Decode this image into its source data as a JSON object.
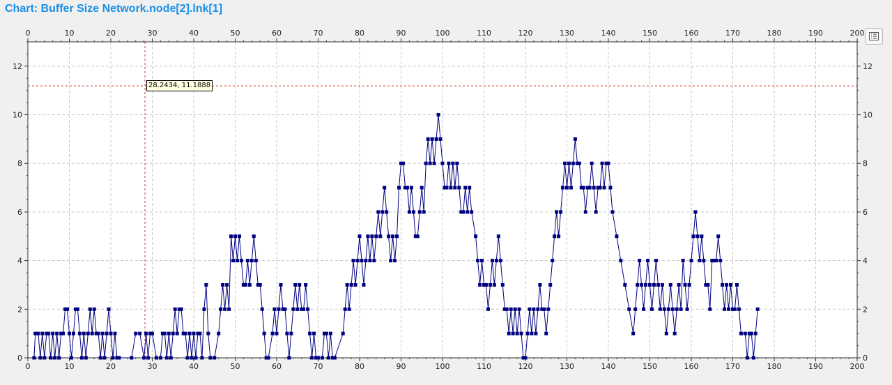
{
  "title": "Chart: Buffer Size Network.node[2].lnk[1]",
  "cursor": {
    "x": 28.2434,
    "y": 11.1888,
    "label": "28.2434, 11.1888"
  },
  "legend_button": {
    "icon": "list-icon"
  },
  "colors": {
    "title": "#1a8fe6",
    "series": "#000080",
    "cursor": "#d03030",
    "grid": "#c8c8c8",
    "plot_bg": "#ffffff"
  },
  "chart_data": {
    "type": "line",
    "title": "Buffer Size Network.node[2].lnk[1]",
    "xlabel": "",
    "ylabel": "",
    "xlim": [
      0,
      200
    ],
    "ylim": [
      0,
      13
    ],
    "xticks": [
      0,
      10,
      20,
      30,
      40,
      50,
      60,
      70,
      80,
      90,
      100,
      110,
      120,
      130,
      140,
      150,
      160,
      170,
      180,
      190,
      200
    ],
    "yticks": [
      0,
      2,
      4,
      6,
      8,
      10,
      12
    ],
    "grid": true,
    "markers": "square",
    "series": [
      {
        "values": [
          [
            1.5,
            0
          ],
          [
            1.8,
            1
          ],
          [
            2.5,
            1
          ],
          [
            3,
            0
          ],
          [
            3.5,
            1
          ],
          [
            4,
            0
          ],
          [
            4.5,
            1
          ],
          [
            5,
            1
          ],
          [
            5.5,
            0
          ],
          [
            6,
            1
          ],
          [
            6.5,
            0
          ],
          [
            7,
            1
          ],
          [
            7.5,
            0
          ],
          [
            8,
            1
          ],
          [
            8.5,
            1
          ],
          [
            9,
            2
          ],
          [
            9.5,
            2
          ],
          [
            10,
            1
          ],
          [
            10.5,
            0
          ],
          [
            11,
            1
          ],
          [
            11.5,
            2
          ],
          [
            12,
            2
          ],
          [
            12.5,
            1
          ],
          [
            13,
            0
          ],
          [
            13.5,
            1
          ],
          [
            14,
            0
          ],
          [
            14.5,
            1
          ],
          [
            15,
            2
          ],
          [
            15.5,
            1
          ],
          [
            16,
            2
          ],
          [
            16.5,
            1
          ],
          [
            17,
            1
          ],
          [
            17.5,
            0
          ],
          [
            18,
            1
          ],
          [
            18.5,
            0
          ],
          [
            19,
            1
          ],
          [
            19.5,
            2
          ],
          [
            20,
            1
          ],
          [
            20.5,
            0
          ],
          [
            21,
            1
          ],
          [
            21.5,
            0
          ],
          [
            22,
            0
          ],
          [
            25,
            0
          ],
          [
            26,
            1
          ],
          [
            27,
            1
          ],
          [
            28,
            0
          ],
          [
            28.5,
            1
          ],
          [
            29,
            0
          ],
          [
            29.5,
            1
          ],
          [
            30,
            1
          ],
          [
            31,
            0
          ],
          [
            32,
            0
          ],
          [
            32.5,
            1
          ],
          [
            33,
            1
          ],
          [
            33.5,
            0
          ],
          [
            34,
            1
          ],
          [
            34.5,
            0
          ],
          [
            35,
            1
          ],
          [
            35.5,
            2
          ],
          [
            36,
            1
          ],
          [
            36.5,
            2
          ],
          [
            37,
            2
          ],
          [
            37.5,
            1
          ],
          [
            38,
            1
          ],
          [
            38.5,
            0
          ],
          [
            39,
            1
          ],
          [
            39.5,
            0
          ],
          [
            40,
            1
          ],
          [
            40.5,
            0
          ],
          [
            41,
            1
          ],
          [
            41.5,
            1
          ],
          [
            42,
            0
          ],
          [
            42.5,
            2
          ],
          [
            43,
            3
          ],
          [
            43.5,
            1
          ],
          [
            44,
            0
          ],
          [
            45,
            0
          ],
          [
            46,
            1
          ],
          [
            46.5,
            2
          ],
          [
            47,
            3
          ],
          [
            47.5,
            2
          ],
          [
            48,
            3
          ],
          [
            48.5,
            2
          ],
          [
            49,
            5
          ],
          [
            49.5,
            4
          ],
          [
            50,
            5
          ],
          [
            50.5,
            4
          ],
          [
            51,
            5
          ],
          [
            51.5,
            4
          ],
          [
            52,
            3
          ],
          [
            52.5,
            3
          ],
          [
            53,
            4
          ],
          [
            53.5,
            3
          ],
          [
            54,
            4
          ],
          [
            54.5,
            5
          ],
          [
            55,
            4
          ],
          [
            55.5,
            3
          ],
          [
            56,
            3
          ],
          [
            56.5,
            2
          ],
          [
            57,
            1
          ],
          [
            57.5,
            0
          ],
          [
            58,
            0
          ],
          [
            59,
            1
          ],
          [
            59.5,
            2
          ],
          [
            60,
            1
          ],
          [
            60.5,
            2
          ],
          [
            61,
            3
          ],
          [
            61.5,
            2
          ],
          [
            62,
            2
          ],
          [
            62.5,
            1
          ],
          [
            63,
            0
          ],
          [
            63.5,
            1
          ],
          [
            64,
            2
          ],
          [
            64.5,
            3
          ],
          [
            65,
            2
          ],
          [
            65.5,
            3
          ],
          [
            66,
            2
          ],
          [
            66.5,
            2
          ],
          [
            67,
            3
          ],
          [
            67.5,
            2
          ],
          [
            68,
            1
          ],
          [
            68.5,
            0
          ],
          [
            69,
            1
          ],
          [
            69.5,
            0
          ],
          [
            70,
            0
          ],
          [
            71,
            0
          ],
          [
            71.5,
            1
          ],
          [
            72,
            1
          ],
          [
            72.5,
            0
          ],
          [
            73,
            1
          ],
          [
            73.5,
            0
          ],
          [
            74,
            0
          ],
          [
            76,
            1
          ],
          [
            76.5,
            2
          ],
          [
            77,
            3
          ],
          [
            77.5,
            2
          ],
          [
            78,
            3
          ],
          [
            78.5,
            4
          ],
          [
            79,
            3
          ],
          [
            79.5,
            4
          ],
          [
            80,
            5
          ],
          [
            80.5,
            4
          ],
          [
            81,
            3
          ],
          [
            81.5,
            4
          ],
          [
            82,
            5
          ],
          [
            82.5,
            4
          ],
          [
            83,
            5
          ],
          [
            83.5,
            4
          ],
          [
            84,
            5
          ],
          [
            84.5,
            6
          ],
          [
            85,
            5
          ],
          [
            85.5,
            6
          ],
          [
            86,
            7
          ],
          [
            86.5,
            6
          ],
          [
            87,
            5
          ],
          [
            87.5,
            4
          ],
          [
            88,
            5
          ],
          [
            88.5,
            4
          ],
          [
            89,
            5
          ],
          [
            89.5,
            7
          ],
          [
            90,
            8
          ],
          [
            90.5,
            8
          ],
          [
            91,
            7
          ],
          [
            91.5,
            7
          ],
          [
            92,
            6
          ],
          [
            92.5,
            7
          ],
          [
            93,
            6
          ],
          [
            93.5,
            5
          ],
          [
            94,
            5
          ],
          [
            94.5,
            6
          ],
          [
            95,
            7
          ],
          [
            95.5,
            6
          ],
          [
            96,
            8
          ],
          [
            96.5,
            9
          ],
          [
            97,
            8
          ],
          [
            97.5,
            9
          ],
          [
            98,
            8
          ],
          [
            98.5,
            9
          ],
          [
            99,
            10
          ],
          [
            99.5,
            9
          ],
          [
            100,
            8
          ],
          [
            100.5,
            7
          ],
          [
            101,
            7
          ],
          [
            101.5,
            8
          ],
          [
            102,
            7
          ],
          [
            102.5,
            8
          ],
          [
            103,
            7
          ],
          [
            103.5,
            8
          ],
          [
            104,
            7
          ],
          [
            104.5,
            6
          ],
          [
            105,
            6
          ],
          [
            105.5,
            7
          ],
          [
            106,
            6
          ],
          [
            106.5,
            7
          ],
          [
            107,
            6
          ],
          [
            108,
            5
          ],
          [
            108.5,
            4
          ],
          [
            109,
            3
          ],
          [
            109.5,
            4
          ],
          [
            110,
            3
          ],
          [
            110.5,
            3
          ],
          [
            111,
            2
          ],
          [
            111.5,
            3
          ],
          [
            112,
            4
          ],
          [
            112.5,
            3
          ],
          [
            113,
            4
          ],
          [
            113.5,
            5
          ],
          [
            114,
            4
          ],
          [
            114.5,
            3
          ],
          [
            115,
            2
          ],
          [
            115.5,
            2
          ],
          [
            116,
            1
          ],
          [
            116.5,
            2
          ],
          [
            117,
            1
          ],
          [
            117.5,
            2
          ],
          [
            118,
            1
          ],
          [
            118.5,
            2
          ],
          [
            119,
            1
          ],
          [
            119.5,
            0
          ],
          [
            120,
            0
          ],
          [
            120.5,
            1
          ],
          [
            121,
            2
          ],
          [
            121.5,
            1
          ],
          [
            122,
            2
          ],
          [
            122.5,
            1
          ],
          [
            123,
            2
          ],
          [
            123.5,
            3
          ],
          [
            124,
            2
          ],
          [
            124.5,
            2
          ],
          [
            125,
            1
          ],
          [
            125.5,
            2
          ],
          [
            126,
            3
          ],
          [
            126.5,
            4
          ],
          [
            127,
            5
          ],
          [
            127.5,
            6
          ],
          [
            128,
            5
          ],
          [
            128.5,
            6
          ],
          [
            129,
            7
          ],
          [
            129.5,
            8
          ],
          [
            130,
            7
          ],
          [
            130.5,
            8
          ],
          [
            131,
            7
          ],
          [
            131.5,
            8
          ],
          [
            132,
            9
          ],
          [
            132.5,
            8
          ],
          [
            133,
            8
          ],
          [
            133.5,
            7
          ],
          [
            134,
            7
          ],
          [
            134.5,
            6
          ],
          [
            135,
            7
          ],
          [
            135.5,
            7
          ],
          [
            136,
            8
          ],
          [
            136.5,
            7
          ],
          [
            137,
            6
          ],
          [
            137.5,
            7
          ],
          [
            138,
            7
          ],
          [
            138.5,
            8
          ],
          [
            139,
            7
          ],
          [
            139.5,
            8
          ],
          [
            140,
            8
          ],
          [
            140.5,
            7
          ],
          [
            141,
            6
          ],
          [
            142,
            5
          ],
          [
            143,
            4
          ],
          [
            144,
            3
          ],
          [
            145,
            2
          ],
          [
            146,
            1
          ],
          [
            146.5,
            2
          ],
          [
            147,
            3
          ],
          [
            147.5,
            4
          ],
          [
            148,
            3
          ],
          [
            148.5,
            2
          ],
          [
            149,
            3
          ],
          [
            149.5,
            4
          ],
          [
            150,
            3
          ],
          [
            150.5,
            2
          ],
          [
            151,
            3
          ],
          [
            151.5,
            4
          ],
          [
            152,
            3
          ],
          [
            152.5,
            2
          ],
          [
            153,
            3
          ],
          [
            153.5,
            2
          ],
          [
            154,
            1
          ],
          [
            154.5,
            2
          ],
          [
            155,
            3
          ],
          [
            155.5,
            2
          ],
          [
            156,
            1
          ],
          [
            156.5,
            2
          ],
          [
            157,
            3
          ],
          [
            157.5,
            2
          ],
          [
            158,
            4
          ],
          [
            158.5,
            3
          ],
          [
            159,
            2
          ],
          [
            159.5,
            3
          ],
          [
            160,
            4
          ],
          [
            160.5,
            5
          ],
          [
            161,
            6
          ],
          [
            161.5,
            5
          ],
          [
            162,
            4
          ],
          [
            162.5,
            5
          ],
          [
            163,
            4
          ],
          [
            163.5,
            3
          ],
          [
            164,
            3
          ],
          [
            164.5,
            2
          ],
          [
            165,
            4
          ],
          [
            165.5,
            4
          ],
          [
            166,
            4
          ],
          [
            166.5,
            5
          ],
          [
            167,
            4
          ],
          [
            167.5,
            3
          ],
          [
            168,
            2
          ],
          [
            168.5,
            3
          ],
          [
            169,
            2
          ],
          [
            169.5,
            3
          ],
          [
            170,
            2
          ],
          [
            170.5,
            2
          ],
          [
            171,
            3
          ],
          [
            171.5,
            2
          ],
          [
            172,
            1
          ],
          [
            173,
            1
          ],
          [
            173.5,
            0
          ],
          [
            174,
            1
          ],
          [
            174.5,
            1
          ],
          [
            175,
            0
          ],
          [
            175.5,
            1
          ],
          [
            176,
            2
          ]
        ]
      }
    ]
  }
}
